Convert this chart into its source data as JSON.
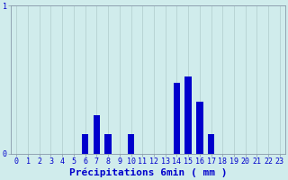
{
  "xlabel": "Précipitations 6min ( mm )",
  "categories": [
    0,
    1,
    2,
    3,
    4,
    5,
    6,
    7,
    8,
    9,
    10,
    11,
    12,
    13,
    14,
    15,
    16,
    17,
    18,
    19,
    20,
    21,
    22,
    23
  ],
  "values": [
    0,
    0,
    0,
    0,
    0,
    0,
    0.13,
    0.26,
    0.13,
    0,
    0.13,
    0,
    0,
    0,
    0.48,
    0.52,
    0.35,
    0.13,
    0,
    0,
    0,
    0,
    0,
    0
  ],
  "bar_color": "#0000cc",
  "bg_color": "#d0ecec",
  "ylim_max": 1.0,
  "xlim": [
    -0.5,
    23.5
  ],
  "grid_color": "#b0cccc",
  "axis_color": "#8899aa",
  "text_color": "#0000cc",
  "xlabel_fontsize": 8,
  "tick_fontsize": 6,
  "bar_width": 0.6
}
